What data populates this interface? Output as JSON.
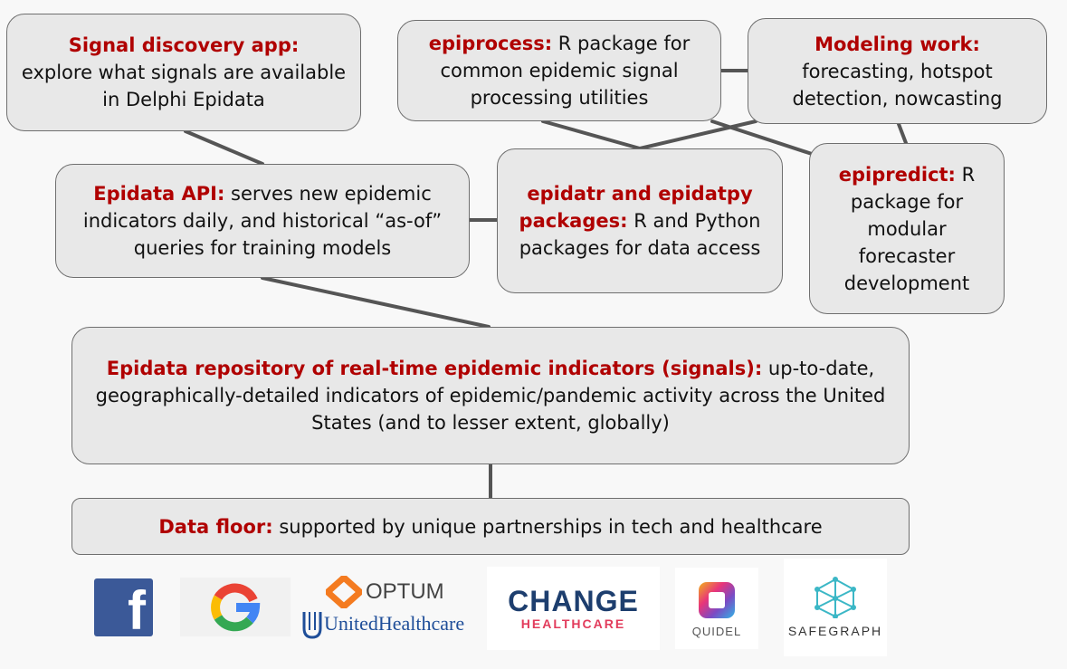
{
  "boxes": {
    "signal_discovery": {
      "title": "Signal discovery app:",
      "body": "explore what signals are available in Delphi Epidata"
    },
    "epiprocess": {
      "title": "epiprocess:",
      "body": " R package for common epidemic signal processing utilities"
    },
    "modeling": {
      "title": "Modeling work:",
      "body": "forecasting, hotspot detection, nowcasting"
    },
    "epidata_api": {
      "title": "Epidata API:",
      "body": " serves new epidemic indicators daily, and historical “as-of” queries for training models"
    },
    "epidatr": {
      "title": "epidatr and epidatpy packages:",
      "body": " R and Python packages for data access"
    },
    "epipredict": {
      "title": "epipredict:",
      "body": " R package for modular forecaster development"
    },
    "repository": {
      "title": "Epidata repository of real-time epidemic indicators (signals):",
      "body": " up-to-date, geographically-detailed indicators of epidemic/pandemic activity across the United States (and to lesser extent, globally)"
    },
    "data_floor": {
      "title": "Data floor:",
      "body": " supported by unique partnerships in tech and healthcare"
    }
  },
  "logos": {
    "facebook": {
      "glyph": "f"
    },
    "google": {
      "glyph": "G"
    },
    "optum": {
      "optum": "OPTUM",
      "uhc": "UnitedHealthcare"
    },
    "change": {
      "top": "CHANGE",
      "bottom": "HEALTHCARE"
    },
    "quidel": {
      "label": "QUIDEL"
    },
    "safegraph": {
      "label": "SAFEGRAPH"
    }
  },
  "colors": {
    "highlight": "#b00000",
    "box_fill": "#e8e8e8",
    "line": "#555555"
  }
}
